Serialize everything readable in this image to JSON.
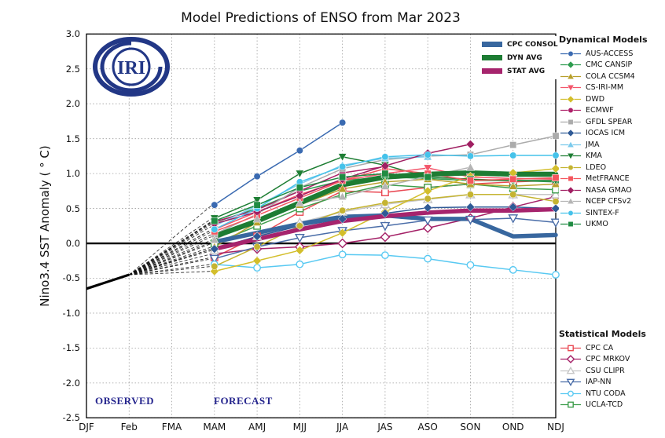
{
  "page": {
    "title": "Model Predictions of ENSO from Mar 2023"
  },
  "logo": {
    "text": "IRI",
    "color": "#223786"
  },
  "annotations": {
    "observed": "OBSERVED",
    "forecast": "FORECAST",
    "color": "#26268e"
  },
  "chart_data": {
    "type": "line",
    "title": "Model Predictions of ENSO from Mar 2023",
    "xlabel": "",
    "ylabel": "Nino3.4 SST Anomaly ( ° C)",
    "x_categories": [
      "DJF",
      "Feb",
      "FMA",
      "MAM",
      "AMJ",
      "MJJ",
      "JJA",
      "JAS",
      "ASO",
      "SON",
      "OND",
      "NDJ"
    ],
    "yticks": [
      "3.0",
      "2.5",
      "2.0",
      "1.5",
      "1.0",
      "0.5",
      "0.0",
      "-0.5",
      "-1.0",
      "-1.5",
      "-2.0",
      "-2.5"
    ],
    "ylim": [
      -2.5,
      3.0
    ],
    "grid": true,
    "legend_position": "right",
    "observed": {
      "x": [
        "DJF",
        "Feb"
      ],
      "values": [
        -0.65,
        -0.45
      ]
    },
    "forecast_start_index": 3,
    "summary_series": [
      {
        "name": "CPC CONSOL",
        "color": "#38679f",
        "values": [
          0.02,
          0.15,
          0.28,
          0.38,
          0.4,
          0.35,
          0.35,
          0.1,
          0.12
        ]
      },
      {
        "name": "DYN AVG",
        "color": "#1d7c33",
        "values": [
          0.1,
          0.32,
          0.58,
          0.84,
          0.95,
          0.99,
          1.01,
          0.99,
          0.99
        ]
      },
      {
        "name": "STAT AVG",
        "color": "#a6246d",
        "values": [
          -0.08,
          0.06,
          0.2,
          0.32,
          0.39,
          0.44,
          0.47,
          0.47,
          0.49
        ]
      }
    ],
    "dynamical_header": "Dynamical Models",
    "dynamical_series": [
      {
        "name": "AUS-ACCESS",
        "color": "#3a6ab1",
        "marker": "circle",
        "open": false,
        "values": [
          0.55,
          0.96,
          1.33,
          1.73
        ]
      },
      {
        "name": "CMC CANSIP",
        "color": "#2e9c4f",
        "marker": "diamond",
        "open": false,
        "values": [
          0.3,
          0.5,
          0.75,
          0.9,
          0.95,
          0.93,
          0.9,
          0.9,
          0.88
        ]
      },
      {
        "name": "COLA CCSM4",
        "color": "#b8a02c",
        "marker": "triangle-up",
        "open": false,
        "values": [
          -0.05,
          0.3,
          0.55,
          0.78,
          0.88,
          0.92,
          0.85,
          0.82,
          0.85
        ]
      },
      {
        "name": "CS-IRI-MM",
        "color": "#f3566b",
        "marker": "triangle-down",
        "open": false,
        "values": [
          0.2,
          0.45,
          0.7,
          0.9,
          1.0,
          1.08,
          0.95,
          0.93,
          0.92
        ]
      },
      {
        "name": "DWD",
        "color": "#d3be2b",
        "marker": "diamond",
        "open": false,
        "values": [
          -0.4,
          -0.25,
          -0.1,
          0.15,
          0.45,
          0.75,
          0.96,
          1.01,
          1.07
        ]
      },
      {
        "name": "ECMWF",
        "color": "#ae2169",
        "marker": "circle",
        "open": false,
        "values": [
          0.31,
          0.48,
          0.75,
          1.01,
          1.1
        ]
      },
      {
        "name": "GFDL SPEAR",
        "color": "#ababab",
        "marker": "square",
        "open": false,
        "values": [
          0.13,
          0.42,
          0.8,
          1.07,
          1.2,
          1.25,
          1.27,
          1.41,
          1.54
        ]
      },
      {
        "name": "IOCAS ICM",
        "color": "#2f5a96",
        "marker": "diamond",
        "open": false,
        "values": [
          -0.08,
          0.1,
          0.25,
          0.35,
          0.43,
          0.51,
          0.52,
          0.52,
          0.5
        ]
      },
      {
        "name": "JMA",
        "color": "#7acaec",
        "marker": "triangle-up",
        "open": false,
        "values": [
          0.25,
          0.54,
          0.85,
          1.12,
          1.22,
          1.24
        ]
      },
      {
        "name": "KMA",
        "color": "#1e7e34",
        "marker": "triangle-down",
        "open": false,
        "values": [
          0.36,
          0.62,
          1.0,
          1.24,
          1.12,
          0.95,
          0.92,
          0.9,
          0.9
        ]
      },
      {
        "name": "LDEO",
        "color": "#c5b431",
        "marker": "circle",
        "open": false,
        "values": [
          -0.33,
          -0.05,
          0.25,
          0.47,
          0.58,
          0.64,
          0.7,
          0.7,
          0.6
        ]
      },
      {
        "name": "MetFRANCE",
        "color": "#f4565e",
        "marker": "square",
        "open": false,
        "values": [
          0.17,
          0.4,
          0.65,
          0.9,
          1.07,
          1.0,
          0.9,
          0.92,
          0.94
        ]
      },
      {
        "name": "NASA GMAO",
        "color": "#a01f62",
        "marker": "diamond",
        "open": false,
        "values": [
          0.28,
          0.45,
          0.68,
          0.92,
          1.11,
          1.29,
          1.42
        ]
      },
      {
        "name": "NCEP CFSv2",
        "color": "#b5b5b5",
        "marker": "triangle-up",
        "open": false,
        "values": [
          0.05,
          0.35,
          0.58,
          0.67,
          0.82,
          0.96,
          1.09
        ]
      },
      {
        "name": "SINTEX-F",
        "color": "#45c2ea",
        "marker": "circle",
        "open": false,
        "values": [
          0.2,
          0.5,
          0.88,
          1.1,
          1.24,
          1.27,
          1.25,
          1.26,
          1.26
        ]
      },
      {
        "name": "UKMO",
        "color": "#1f8b42",
        "marker": "square",
        "open": false,
        "values": [
          0.32,
          0.55,
          0.8,
          0.95,
          1.0,
          0.95
        ]
      }
    ],
    "statistical_header": "Statistical Models",
    "statistical_series": [
      {
        "name": "CPC CA",
        "color": "#e94953",
        "marker": "square",
        "open": true,
        "values": [
          -0.2,
          0.1,
          0.45,
          0.75,
          0.73,
          0.8,
          0.85,
          0.88,
          0.9
        ]
      },
      {
        "name": "CPC MRKOV",
        "color": "#a42167",
        "marker": "diamond",
        "open": true,
        "values": [
          -0.15,
          -0.08,
          -0.05,
          0.0,
          0.09,
          0.22,
          0.36,
          0.52,
          0.67
        ]
      },
      {
        "name": "CSU CLIPR",
        "color": "#c6c6c6",
        "marker": "triangle-up",
        "open": true,
        "values": [
          -0.1,
          0.1,
          0.3,
          0.45,
          0.56,
          0.63,
          0.7,
          0.7,
          0.7
        ]
      },
      {
        "name": "IAP-NN",
        "color": "#4a6da8",
        "marker": "triangle-down",
        "open": true,
        "values": [
          -0.22,
          -0.05,
          0.08,
          0.18,
          0.25,
          0.33,
          0.34,
          0.36,
          0.3
        ]
      },
      {
        "name": "NTU CODA",
        "color": "#58c9f2",
        "marker": "circle",
        "open": true,
        "values": [
          -0.3,
          -0.35,
          -0.3,
          -0.16,
          -0.17,
          -0.22,
          -0.31,
          -0.38,
          -0.45
        ]
      },
      {
        "name": "UCLA-TCD",
        "color": "#3f9e4d",
        "marker": "square",
        "open": true,
        "values": [
          0.0,
          0.25,
          0.5,
          0.7,
          0.84,
          0.8,
          0.85,
          0.79,
          0.77
        ]
      }
    ]
  }
}
